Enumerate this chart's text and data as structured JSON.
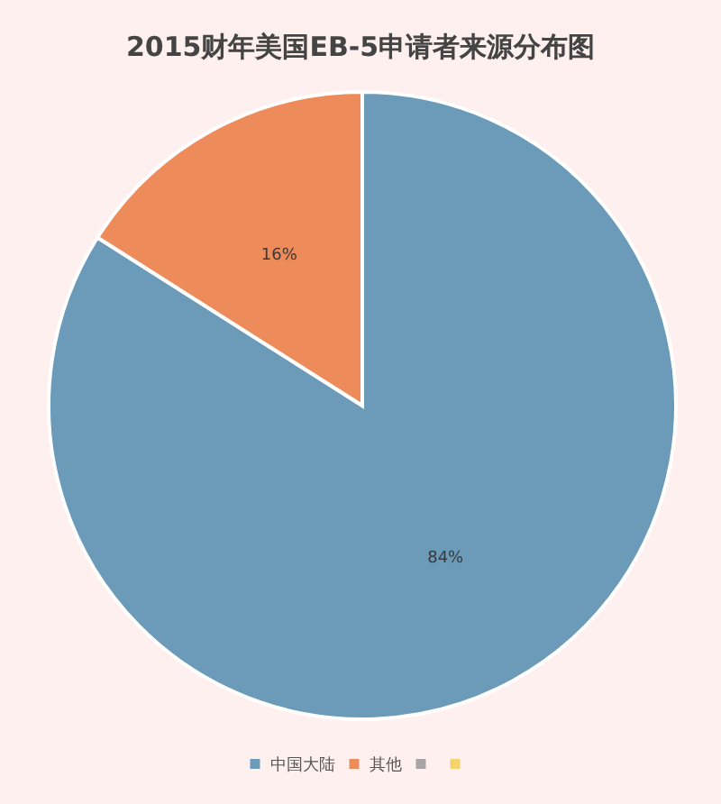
{
  "chart_data": {
    "type": "pie",
    "title": "2015财年美国EB-5申请者来源分布图",
    "categories": [
      "中国大陆",
      "其他",
      null,
      null
    ],
    "values": [
      84,
      16,
      null,
      null
    ],
    "colors": [
      "#6b9bb8",
      "#ee8b5b",
      "#a5a5a5",
      "#f5d36c"
    ],
    "value_labels": [
      "84%",
      "16%",
      null,
      null
    ],
    "legend": "bottom"
  }
}
